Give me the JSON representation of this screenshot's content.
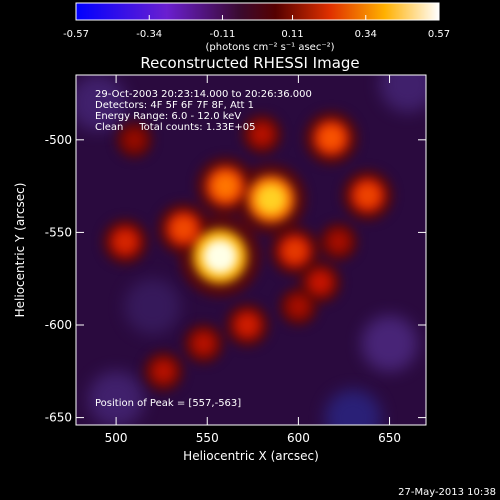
{
  "colorbar": {
    "tick_labels": [
      "-0.57",
      "-0.34",
      "-0.11",
      "0.11",
      "0.34",
      "0.57"
    ],
    "tick_values": [
      -0.57,
      -0.34,
      -0.11,
      0.11,
      0.34,
      0.57
    ],
    "range": [
      -0.57,
      0.57
    ],
    "units": "(photons cm⁻² s⁻¹ asec⁻²)"
  },
  "chart_data": {
    "type": "heatmap",
    "title": "Reconstructed RHESSI Image",
    "xlabel": "Heliocentric X (arcsec)",
    "ylabel": "Heliocentric Y (arcsec)",
    "xlim": [
      478,
      670
    ],
    "ylim": [
      -654,
      -465
    ],
    "xticks": [
      500,
      550,
      600,
      650
    ],
    "yticks": [
      -500,
      -550,
      -600,
      -650
    ],
    "colormap": "RHESSI blue-purple-red-yellow-white",
    "zlim": [
      -0.57,
      0.57
    ],
    "sources": [
      {
        "x": 557,
        "y": -563,
        "peak": 0.57
      },
      {
        "x": 585,
        "y": -532,
        "peak": 0.45
      },
      {
        "x": 560,
        "y": -525,
        "peak": 0.32
      },
      {
        "x": 537,
        "y": -548,
        "peak": 0.25
      },
      {
        "x": 618,
        "y": -499,
        "peak": 0.27
      },
      {
        "x": 638,
        "y": -530,
        "peak": 0.24
      },
      {
        "x": 598,
        "y": -560,
        "peak": 0.22
      },
      {
        "x": 505,
        "y": -555,
        "peak": 0.18
      },
      {
        "x": 572,
        "y": -600,
        "peak": 0.16
      },
      {
        "x": 612,
        "y": -577,
        "peak": 0.14
      },
      {
        "x": 580,
        "y": -497,
        "peak": 0.12
      },
      {
        "x": 526,
        "y": -625,
        "peak": 0.12
      },
      {
        "x": 548,
        "y": -610,
        "peak": 0.12
      },
      {
        "x": 600,
        "y": -590,
        "peak": 0.1
      },
      {
        "x": 510,
        "y": -500,
        "peak": 0.08
      },
      {
        "x": 622,
        "y": -555,
        "peak": 0.1
      }
    ],
    "annotations": {
      "time_range": "29-Oct-2003 20:23:14.000 to 20:26:36.000",
      "detectors": "Detectors: 4F 5F 6F 7F 8F, Att 1",
      "energy": "Energy Range: 6.0 - 12.0 keV",
      "method": "Clean     Total counts: 1.33E+05",
      "peak": "Position of Peak = [557,-563]"
    }
  },
  "footer_date": "27-May-2013 10:38"
}
